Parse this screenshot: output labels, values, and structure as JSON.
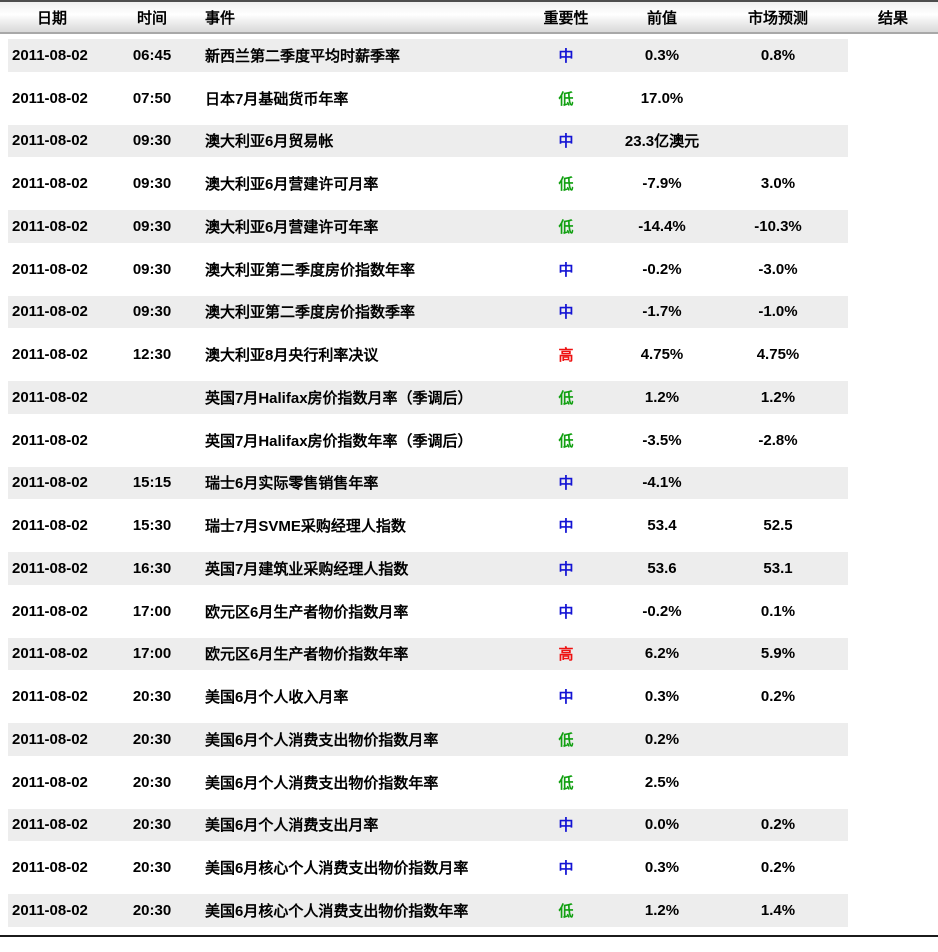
{
  "table": {
    "columns": [
      {
        "key": "date",
        "label": "日期"
      },
      {
        "key": "time",
        "label": "时间"
      },
      {
        "key": "event",
        "label": "事件"
      },
      {
        "key": "importance",
        "label": "重要性"
      },
      {
        "key": "previous",
        "label": "前值"
      },
      {
        "key": "forecast",
        "label": "市场预测"
      },
      {
        "key": "result",
        "label": "结果"
      }
    ],
    "importance_colors": {
      "高": "#ee1111",
      "中": "#1414d4",
      "低": "#11a011"
    },
    "stripe_color": "#ededed",
    "rows": [
      {
        "date": "2011-08-02",
        "time": "06:45",
        "event": "新西兰第二季度平均时薪季率",
        "importance": "中",
        "previous": "0.3%",
        "forecast": "0.8%",
        "result": ""
      },
      {
        "date": "2011-08-02",
        "time": "07:50",
        "event": "日本7月基础货币年率",
        "importance": "低",
        "previous": "17.0%",
        "forecast": "",
        "result": ""
      },
      {
        "date": "2011-08-02",
        "time": "09:30",
        "event": "澳大利亚6月贸易帐",
        "importance": "中",
        "previous": "23.3亿澳元",
        "forecast": "",
        "result": ""
      },
      {
        "date": "2011-08-02",
        "time": "09:30",
        "event": "澳大利亚6月营建许可月率",
        "importance": "低",
        "previous": "-7.9%",
        "forecast": "3.0%",
        "result": ""
      },
      {
        "date": "2011-08-02",
        "time": "09:30",
        "event": "澳大利亚6月营建许可年率",
        "importance": "低",
        "previous": "-14.4%",
        "forecast": "-10.3%",
        "result": ""
      },
      {
        "date": "2011-08-02",
        "time": "09:30",
        "event": "澳大利亚第二季度房价指数年率",
        "importance": "中",
        "previous": "-0.2%",
        "forecast": "-3.0%",
        "result": ""
      },
      {
        "date": "2011-08-02",
        "time": "09:30",
        "event": "澳大利亚第二季度房价指数季率",
        "importance": "中",
        "previous": "-1.7%",
        "forecast": "-1.0%",
        "result": ""
      },
      {
        "date": "2011-08-02",
        "time": "12:30",
        "event": "澳大利亚8月央行利率决议",
        "importance": "高",
        "previous": "4.75%",
        "forecast": "4.75%",
        "result": ""
      },
      {
        "date": "2011-08-02",
        "time": "",
        "event": "英国7月Halifax房价指数月率（季调后）",
        "importance": "低",
        "previous": "1.2%",
        "forecast": "1.2%",
        "result": ""
      },
      {
        "date": "2011-08-02",
        "time": "",
        "event": "英国7月Halifax房价指数年率（季调后）",
        "importance": "低",
        "previous": "-3.5%",
        "forecast": "-2.8%",
        "result": ""
      },
      {
        "date": "2011-08-02",
        "time": "15:15",
        "event": "瑞士6月实际零售销售年率",
        "importance": "中",
        "previous": "-4.1%",
        "forecast": "",
        "result": ""
      },
      {
        "date": "2011-08-02",
        "time": "15:30",
        "event": "瑞士7月SVME采购经理人指数",
        "importance": "中",
        "previous": "53.4",
        "forecast": "52.5",
        "result": ""
      },
      {
        "date": "2011-08-02",
        "time": "16:30",
        "event": "英国7月建筑业采购经理人指数",
        "importance": "中",
        "previous": "53.6",
        "forecast": "53.1",
        "result": ""
      },
      {
        "date": "2011-08-02",
        "time": "17:00",
        "event": "欧元区6月生产者物价指数月率",
        "importance": "中",
        "previous": "-0.2%",
        "forecast": "0.1%",
        "result": ""
      },
      {
        "date": "2011-08-02",
        "time": "17:00",
        "event": "欧元区6月生产者物价指数年率",
        "importance": "高",
        "previous": "6.2%",
        "forecast": "5.9%",
        "result": ""
      },
      {
        "date": "2011-08-02",
        "time": "20:30",
        "event": "美国6月个人收入月率",
        "importance": "中",
        "previous": "0.3%",
        "forecast": "0.2%",
        "result": ""
      },
      {
        "date": "2011-08-02",
        "time": "20:30",
        "event": "美国6月个人消费支出物价指数月率",
        "importance": "低",
        "previous": "0.2%",
        "forecast": "",
        "result": ""
      },
      {
        "date": "2011-08-02",
        "time": "20:30",
        "event": "美国6月个人消费支出物价指数年率",
        "importance": "低",
        "previous": "2.5%",
        "forecast": "",
        "result": ""
      },
      {
        "date": "2011-08-02",
        "time": "20:30",
        "event": "美国6月个人消费支出月率",
        "importance": "中",
        "previous": "0.0%",
        "forecast": "0.2%",
        "result": ""
      },
      {
        "date": "2011-08-02",
        "time": "20:30",
        "event": "美国6月核心个人消费支出物价指数月率",
        "importance": "中",
        "previous": "0.3%",
        "forecast": "0.2%",
        "result": ""
      },
      {
        "date": "2011-08-02",
        "time": "20:30",
        "event": "美国6月核心个人消费支出物价指数年率",
        "importance": "低",
        "previous": "1.2%",
        "forecast": "1.4%",
        "result": ""
      }
    ]
  }
}
